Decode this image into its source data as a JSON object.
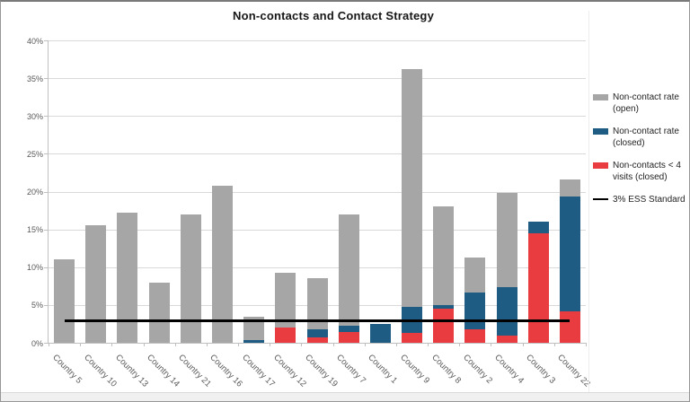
{
  "chart_data": {
    "type": "bar",
    "stacked": true,
    "title": "Non-contacts and Contact Strategy",
    "categories": [
      "Country 5",
      "Country 10",
      "Country 13",
      "Country 14",
      "Country 21",
      "Country 16",
      "Country 17",
      "Country 12",
      "Country 19",
      "Country 7",
      "Country 1",
      "Country 9",
      "Country 8",
      "Country 2",
      "Country 4",
      "Country 3",
      "Country 22"
    ],
    "series": [
      {
        "name": "Non-contacts < 4 visits (closed)",
        "color": "#e83c40",
        "values": [
          0,
          0,
          0,
          0,
          0,
          0,
          0,
          2.0,
          0.7,
          1.4,
          0,
          1.3,
          4.5,
          1.8,
          1.0,
          14.5,
          4.2
        ]
      },
      {
        "name": "Non-contact rate (closed)",
        "color": "#1f5c83",
        "values": [
          0,
          0,
          0,
          0,
          0,
          0,
          0.3,
          0,
          1.1,
          0.9,
          2.5,
          3.5,
          0.5,
          4.9,
          6.3,
          1.5,
          15.1
        ]
      },
      {
        "name": "Non-contact rate (open)",
        "color": "#a6a6a6",
        "values": [
          11.0,
          15.5,
          17.2,
          8.0,
          17.0,
          20.8,
          3.1,
          7.2,
          6.7,
          14.7,
          0,
          31.4,
          13.0,
          4.6,
          12.5,
          0,
          2.3
        ]
      }
    ],
    "reference_line": {
      "label": "3% ESS Standard",
      "value": 3,
      "color": "#000000"
    },
    "xlabel": "",
    "ylabel": "",
    "ylim": [
      0,
      40
    ],
    "ytick_step": 5,
    "yticks": [
      "0%",
      "5%",
      "10%",
      "15%",
      "20%",
      "25%",
      "30%",
      "35%",
      "40%"
    ],
    "grid": "horizontal",
    "legend_position": "right"
  },
  "legend": {
    "items": [
      {
        "label": "Non-contact rate (open)",
        "swatch": "box",
        "color": "#a6a6a6"
      },
      {
        "label": "Non-contact rate (closed)",
        "swatch": "box",
        "color": "#1f5c83"
      },
      {
        "label": "Non-contacts < 4 visits (closed)",
        "swatch": "box",
        "color": "#e83c40"
      },
      {
        "label": "3% ESS Standard",
        "swatch": "line",
        "color": "#000000"
      }
    ]
  },
  "colors": {
    "gridline": "#d9d9d9",
    "axis": "#bfbfbf",
    "tick_label": "#595959",
    "title": "#161616",
    "background": "#ffffff"
  }
}
